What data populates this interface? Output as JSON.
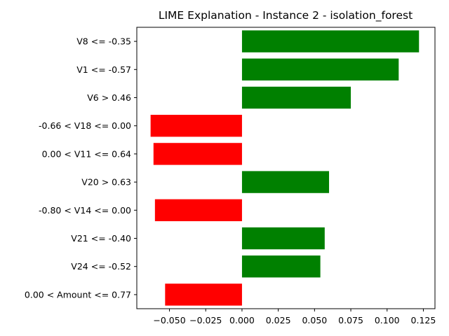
{
  "chart_data": {
    "type": "bar",
    "orientation": "horizontal",
    "title": "LIME Explanation - Instance 2 - isolation_forest",
    "xlabel": "",
    "ylabel": "",
    "categories": [
      "V8 <= -0.35",
      "V1 <= -0.57",
      "V6 > 0.46",
      "-0.66 < V18 <= 0.00",
      "0.00 < V11 <= 0.64",
      "V20 > 0.63",
      "-0.80 < V14 <= 0.00",
      "V21 <= -0.40",
      "V24 <= -0.52",
      "0.00 < Amount <= 0.77"
    ],
    "values": [
      0.122,
      0.108,
      0.075,
      -0.063,
      -0.061,
      0.06,
      -0.06,
      0.057,
      0.054,
      -0.053
    ],
    "xlim": [
      -0.0725,
      0.133
    ],
    "xticks": [
      -0.05,
      -0.025,
      0.0,
      0.025,
      0.05,
      0.075,
      0.1,
      0.125
    ],
    "xtick_labels": [
      "−0.050",
      "−0.025",
      "0.000",
      "0.025",
      "0.050",
      "0.075",
      "0.100",
      "0.125"
    ],
    "colors": {
      "positive": "#008000",
      "negative": "#ff0000"
    },
    "grid": false,
    "legend": "none"
  }
}
